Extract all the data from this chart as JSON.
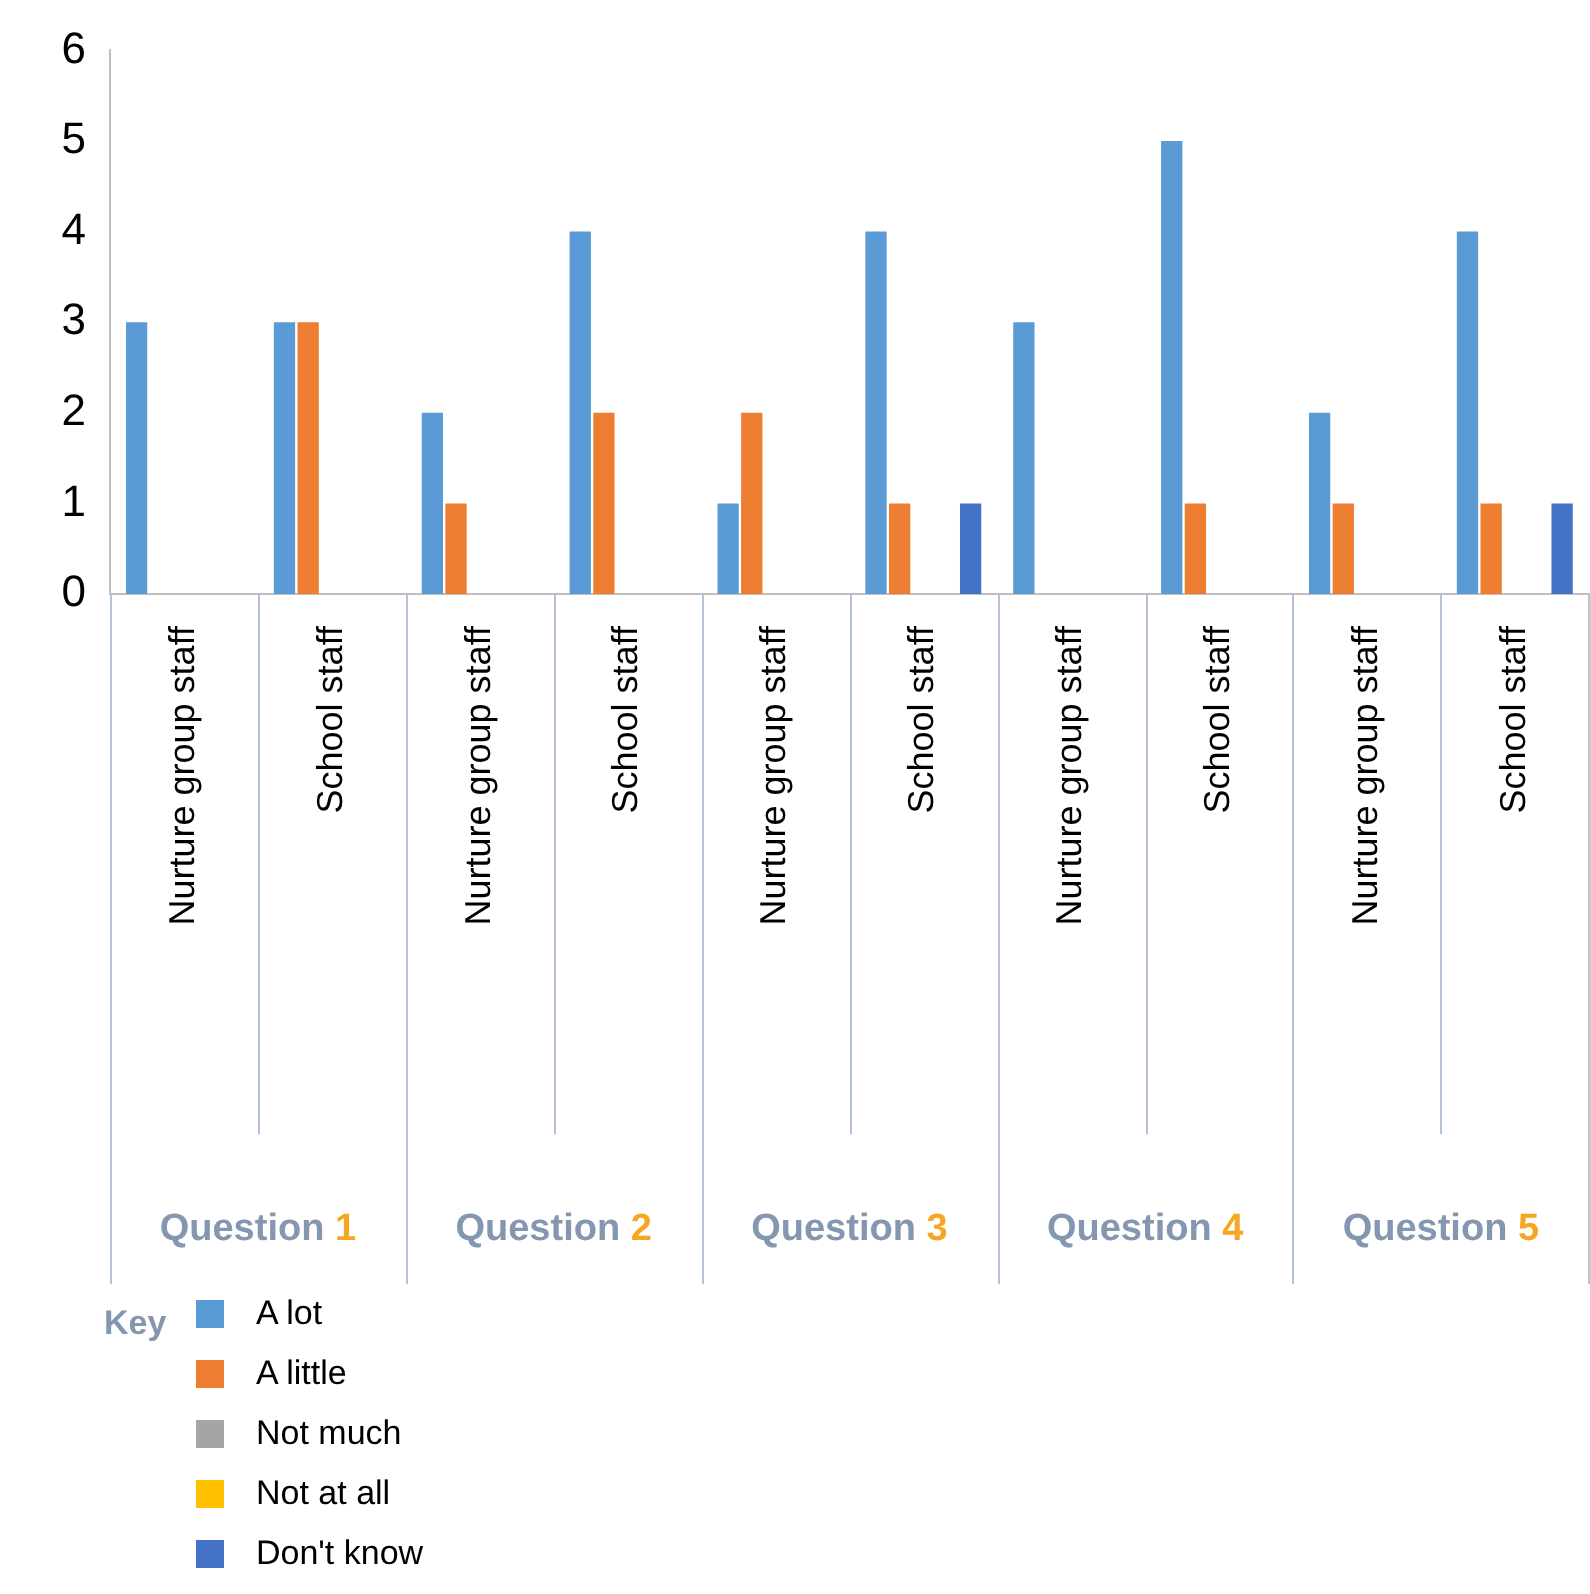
{
  "chart_data": {
    "type": "bar",
    "categories": [
      "Nurture group staff",
      "School staff",
      "Nurture group staff",
      "School staff",
      "Nurture group staff",
      "School staff",
      "Nurture group staff",
      "School staff",
      "Nurture group staff",
      "School staff"
    ],
    "series": [
      {
        "name": "A lot",
        "color": "#5b9bd5",
        "values": [
          3,
          3,
          2,
          4,
          1,
          4,
          3,
          5,
          2,
          4
        ]
      },
      {
        "name": "A little",
        "color": "#ed7d31",
        "values": [
          0,
          3,
          1,
          2,
          2,
          1,
          0,
          1,
          1,
          1
        ]
      },
      {
        "name": "Not much",
        "color": "#a5a5a5",
        "values": [
          0,
          0,
          0,
          0,
          0,
          0,
          0,
          0,
          0,
          0
        ]
      },
      {
        "name": "Not at all",
        "color": "#ffc000",
        "values": [
          0,
          0,
          0,
          0,
          0,
          0,
          0,
          0,
          0,
          0
        ]
      },
      {
        "name": "Don't know",
        "color": "#4472c4",
        "values": [
          0,
          0,
          0,
          0,
          0,
          1,
          0,
          0,
          0,
          1
        ]
      }
    ],
    "ylim": [
      0,
      6
    ],
    "yticks": [
      0,
      1,
      2,
      3,
      4,
      5,
      6
    ],
    "grid": false,
    "legend": "bottom left",
    "legend_title": "Key",
    "annotations": [
      "Question 1",
      "Question 2",
      "Question 3",
      "Question 4",
      "Question 5"
    ]
  }
}
